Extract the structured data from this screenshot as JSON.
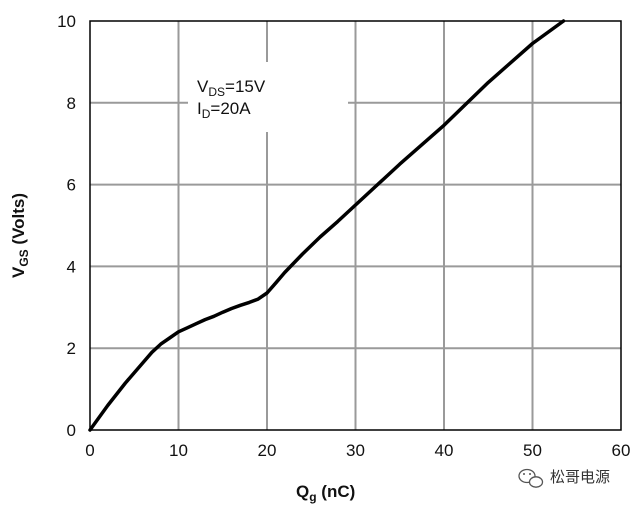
{
  "chart_data": {
    "type": "line",
    "xlabel_main": "Q",
    "xlabel_sub": "g",
    "xlabel_unit": " (nC)",
    "ylabel_main": "V",
    "ylabel_sub": "GS",
    "ylabel_unit": " (Volts)",
    "xlim": [
      0,
      60
    ],
    "ylim": [
      0,
      10
    ],
    "xticks": [
      "0",
      "10",
      "20",
      "30",
      "40",
      "50",
      "60"
    ],
    "yticks": [
      "0",
      "2",
      "4",
      "6",
      "8",
      "10"
    ],
    "grid": true,
    "annotation": {
      "line1_main": "V",
      "line1_sub": "DS",
      "line1_rest": "=15V",
      "line2_main": "I",
      "line2_sub": "D",
      "line2_rest": "=20A"
    },
    "series": [
      {
        "x": [
          0,
          2,
          4,
          6,
          7,
          8,
          9,
          10,
          11,
          12,
          13,
          14,
          15,
          16,
          17,
          18,
          19,
          20,
          21,
          22,
          24,
          26,
          28,
          30,
          35,
          40,
          45,
          50,
          53.5
        ],
        "y": [
          0,
          0.6,
          1.15,
          1.65,
          1.9,
          2.1,
          2.25,
          2.4,
          2.5,
          2.6,
          2.7,
          2.78,
          2.88,
          2.97,
          3.05,
          3.12,
          3.2,
          3.35,
          3.6,
          3.85,
          4.3,
          4.72,
          5.1,
          5.5,
          6.5,
          7.45,
          8.5,
          9.45,
          10
        ]
      }
    ]
  },
  "watermark": {
    "text": "松哥电源",
    "icon": "wechat-icon"
  }
}
